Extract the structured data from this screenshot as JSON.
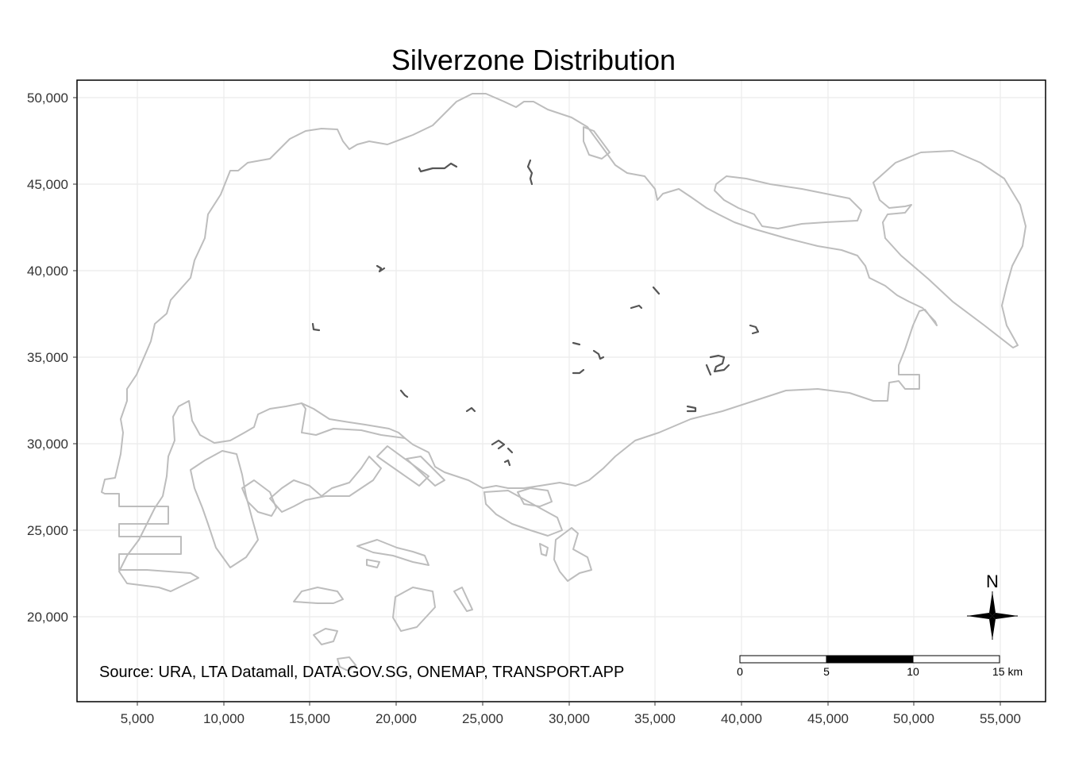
{
  "map": {
    "title": "Silverzone Distribution",
    "source": "Source: URA, LTA Datamall, DATA.GOV.SG, ONEMAP, TRANSPORT.APP",
    "x_axis": {
      "ticks": [
        5000,
        10000,
        15000,
        20000,
        25000,
        30000,
        35000,
        40000,
        45000,
        50000,
        55000
      ],
      "tick_labels": [
        "5,000",
        "10,000",
        "15,000",
        "20,000",
        "25,000",
        "30,000",
        "35,000",
        "40,000",
        "45,000",
        "50,000",
        "55,000"
      ],
      "range": [
        2400,
        57500
      ]
    },
    "y_axis": {
      "ticks": [
        20000,
        25000,
        30000,
        35000,
        40000,
        45000,
        50000
      ],
      "tick_labels": [
        "20,000",
        "25,000",
        "30,000",
        "35,000",
        "40,000",
        "45,000",
        "50,000"
      ],
      "range": [
        15400,
        51000
      ]
    },
    "scale_bar": {
      "labels": [
        "0",
        "5",
        "10",
        "15 km"
      ]
    },
    "north_arrow": {
      "label": "N"
    },
    "colors": {
      "coastline": "#bdbdbd",
      "silverzone_lines": "#555555",
      "gridline": "#ebebeb",
      "panel_border": "#000000"
    }
  }
}
